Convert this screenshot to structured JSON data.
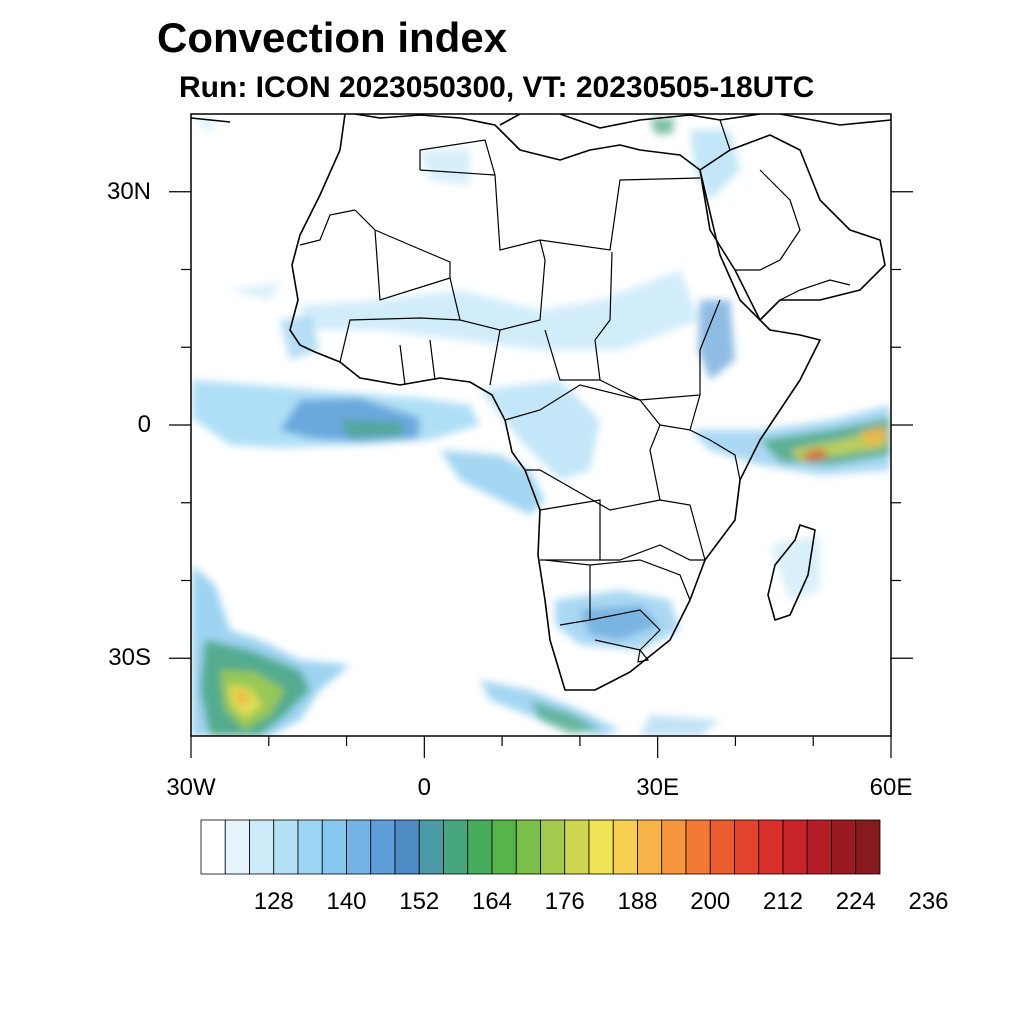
{
  "title": "Convection index",
  "subtitle": "Run: ICON 2023050300,  VT: 20230505-18UTC",
  "axes": {
    "lon_ticks": [
      {
        "value": -30,
        "label": "30W"
      },
      {
        "value": 0,
        "label": "0"
      },
      {
        "value": 30,
        "label": "30E"
      },
      {
        "value": 60,
        "label": "60E"
      }
    ],
    "lat_ticks": [
      {
        "value": 30,
        "label": "30N"
      },
      {
        "value": 0,
        "label": "0"
      },
      {
        "value": -30,
        "label": "30S"
      }
    ],
    "lon_range": [
      -30,
      60
    ],
    "lat_range": [
      -40,
      40
    ]
  },
  "colorbar": {
    "labels": [
      "128",
      "140",
      "152",
      "164",
      "176",
      "188",
      "200",
      "212",
      "224",
      "236"
    ],
    "colors": [
      "#ffffff",
      "#e6f4fc",
      "#cdeaf8",
      "#b4e1f6",
      "#9bd7f4",
      "#86c8ee",
      "#74b4e6",
      "#5f9fd9",
      "#4f8cc6",
      "#4b9aa6",
      "#48a67f",
      "#45ad5c",
      "#55b548",
      "#7cbf48",
      "#a6cb4c",
      "#cfd651",
      "#efe356",
      "#f6cf50",
      "#f7b346",
      "#f6973d",
      "#f27a34",
      "#ea5e2e",
      "#e2452b",
      "#d93129",
      "#c9232a",
      "#b31d26",
      "#9b1a22",
      "#861a1d"
    ]
  }
}
